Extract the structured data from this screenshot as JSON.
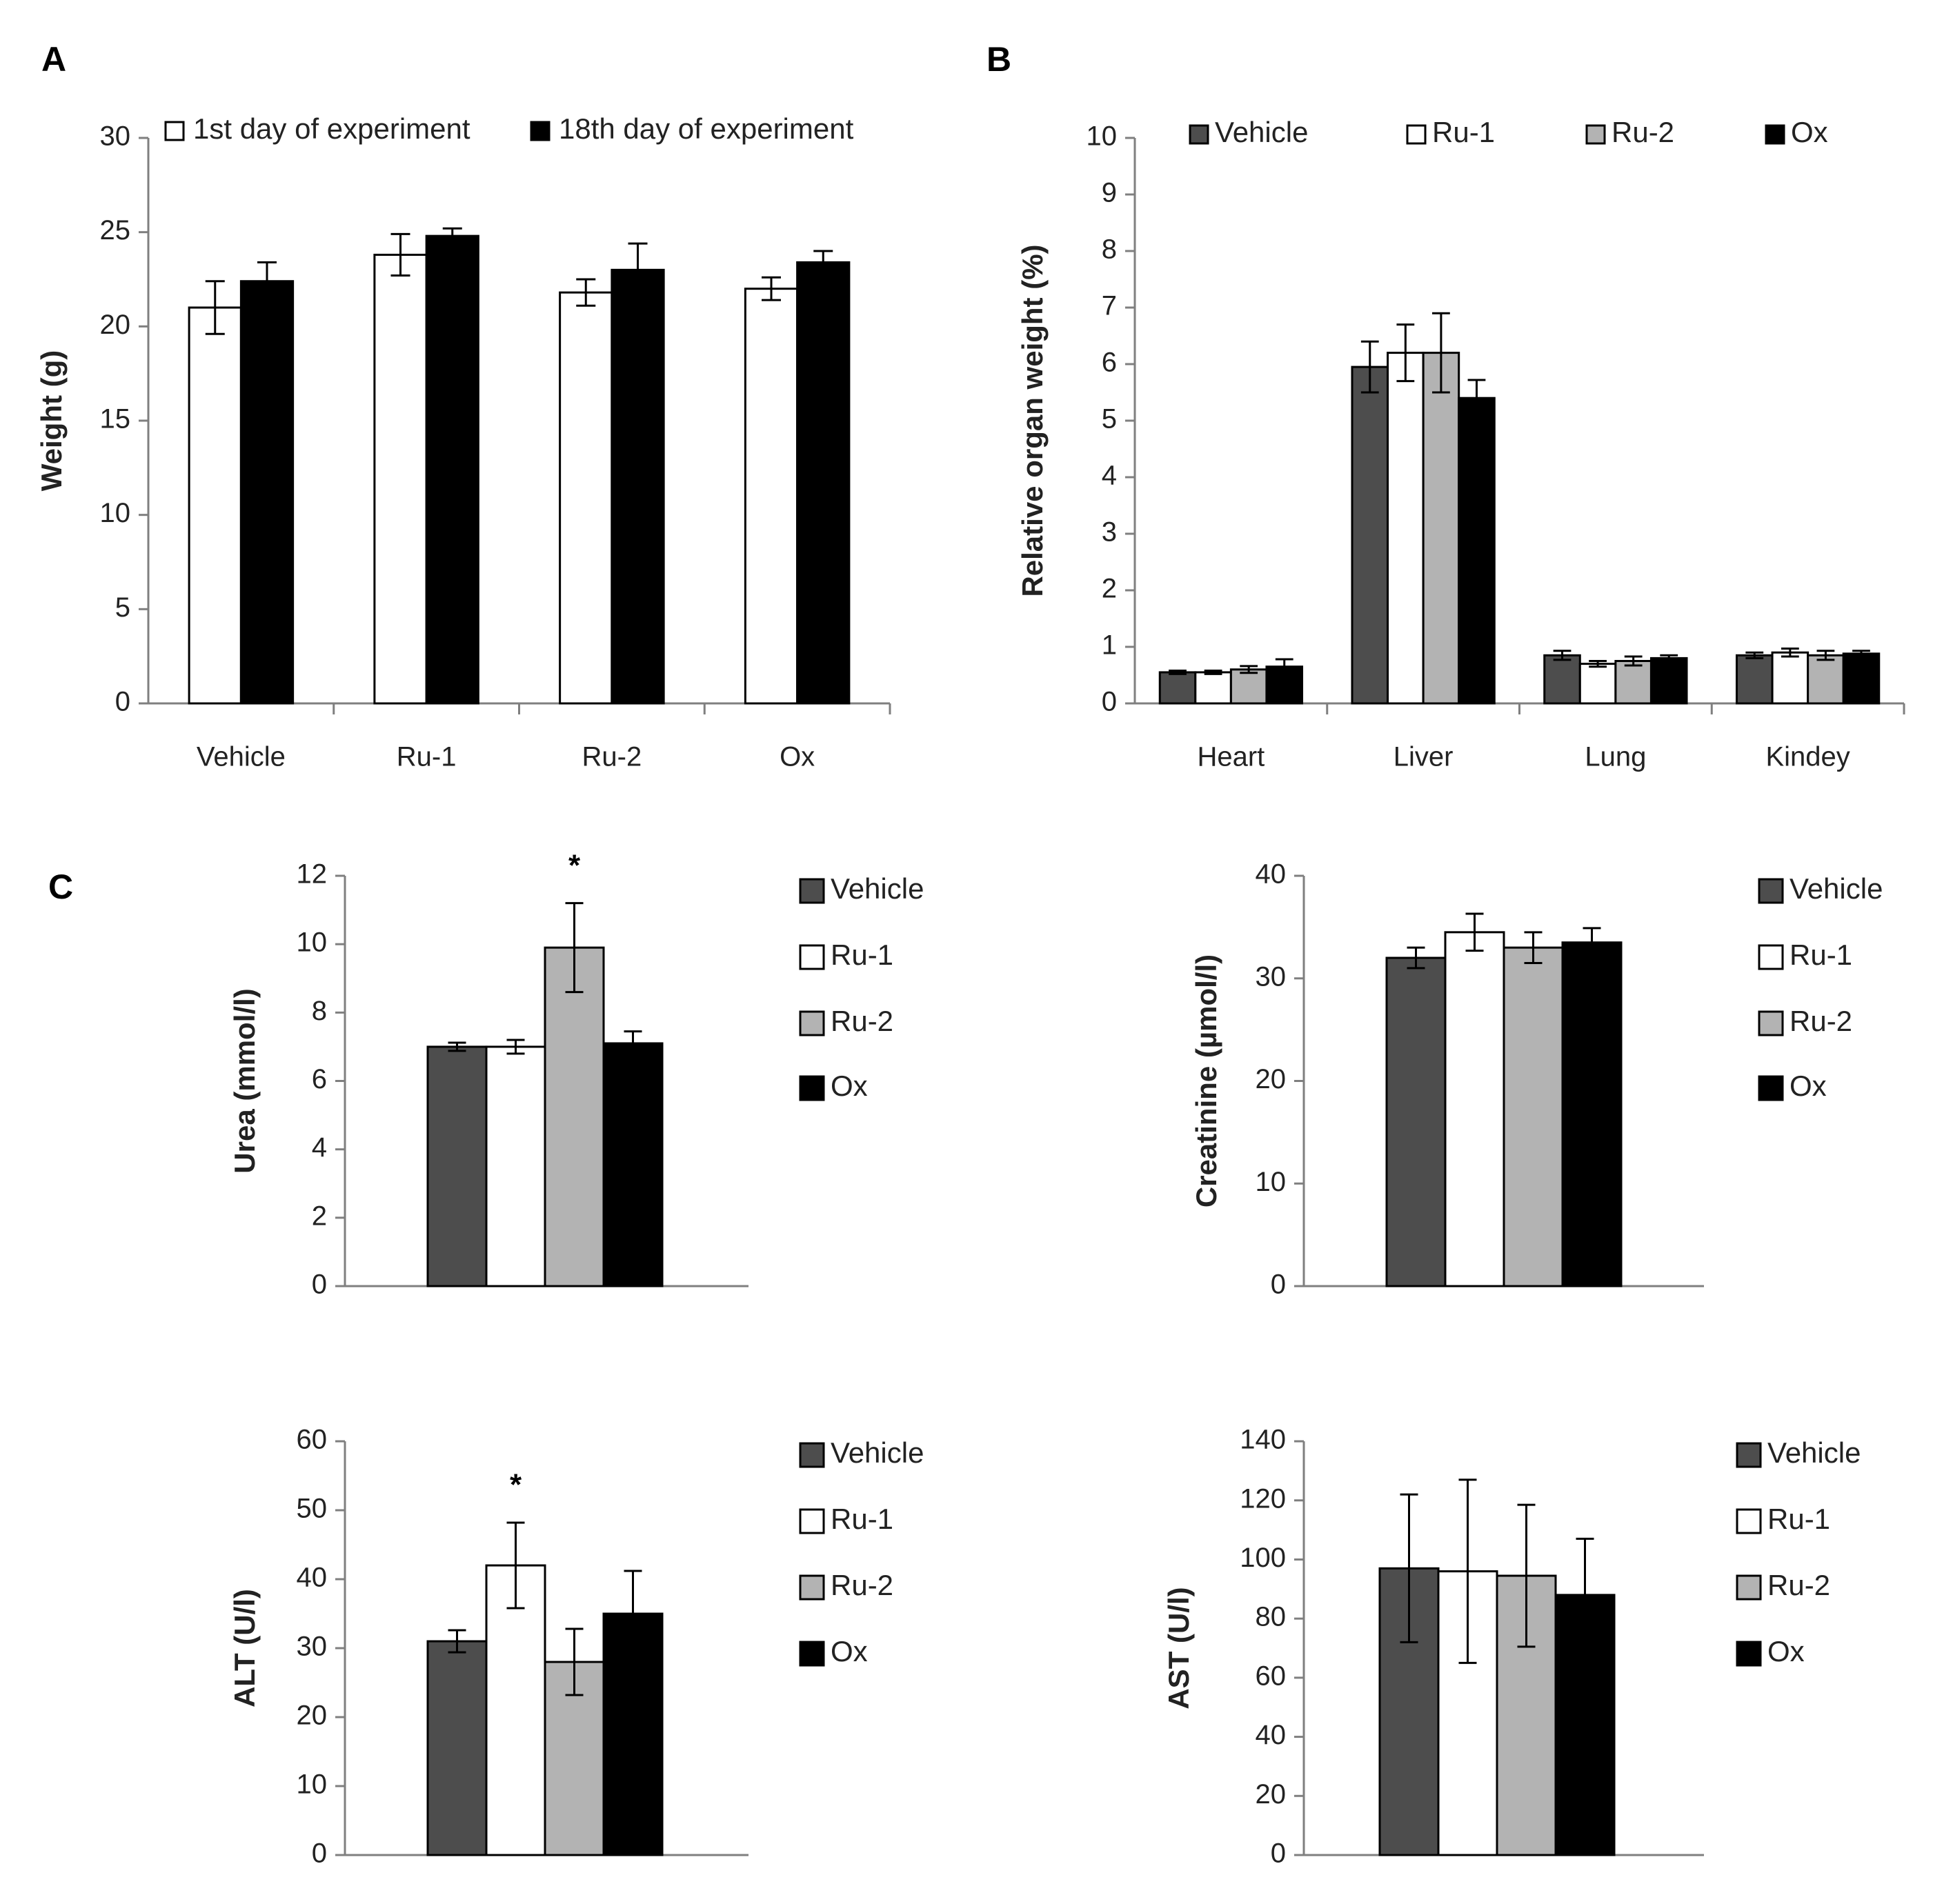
{
  "colors": {
    "vehicle": "#4d4d4d",
    "ru1": "#ffffff",
    "ru2": "#b3b3b3",
    "ox": "#000000",
    "first_day": "#ffffff",
    "eighteenth_day": "#000000",
    "axis": "#7f7f7f",
    "bar_stroke": "#000000"
  },
  "chart_data": [
    {
      "id": "A",
      "panel_label": "A",
      "type": "bar",
      "title": "",
      "xlabel": "",
      "ylabel": "Weight (g)",
      "ylim": [
        0,
        30
      ],
      "yticks": [
        0,
        5,
        10,
        15,
        20,
        25,
        30
      ],
      "categories": [
        "Vehicle",
        "Ru-1",
        "Ru-2",
        "Ox"
      ],
      "series": [
        {
          "name": "1st day of experiment",
          "color_key": "first_day",
          "values": [
            21.0,
            23.8,
            21.8,
            22.0
          ],
          "errors": [
            1.4,
            1.1,
            0.7,
            0.6
          ]
        },
        {
          "name": "18th day of experiment",
          "color_key": "eighteenth_day",
          "values": [
            22.4,
            24.8,
            23.0,
            23.4
          ],
          "errors": [
            1.0,
            0.4,
            1.4,
            0.6
          ]
        }
      ],
      "legend": "top"
    },
    {
      "id": "B",
      "panel_label": "B",
      "type": "bar",
      "title": "",
      "xlabel": "",
      "ylabel": "Relative organ weight (%)",
      "ylim": [
        0,
        10
      ],
      "yticks": [
        0,
        1,
        2,
        3,
        4,
        5,
        6,
        7,
        8,
        9,
        10
      ],
      "categories": [
        "Heart",
        "Liver",
        "Lung",
        "Kindey"
      ],
      "series": [
        {
          "name": "Vehicle",
          "color_key": "vehicle",
          "values": [
            0.55,
            5.95,
            0.85,
            0.85
          ],
          "errors": [
            0.03,
            0.45,
            0.08,
            0.05
          ]
        },
        {
          "name": "Ru-1",
          "color_key": "ru1",
          "values": [
            0.55,
            6.2,
            0.7,
            0.9
          ],
          "errors": [
            0.03,
            0.5,
            0.05,
            0.07
          ]
        },
        {
          "name": "Ru-2",
          "color_key": "ru2",
          "values": [
            0.6,
            6.2,
            0.75,
            0.85
          ],
          "errors": [
            0.06,
            0.7,
            0.08,
            0.08
          ]
        },
        {
          "name": "Ox",
          "color_key": "ox",
          "values": [
            0.65,
            5.4,
            0.8,
            0.88
          ],
          "errors": [
            0.13,
            0.32,
            0.05,
            0.05
          ]
        }
      ],
      "legend": "top"
    },
    {
      "id": "C1",
      "panel_label": "C",
      "type": "bar",
      "title": "",
      "xlabel": "",
      "ylabel": "Urea (mmol/l)",
      "ylim": [
        0,
        12
      ],
      "yticks": [
        0,
        2,
        4,
        6,
        8,
        10,
        12
      ],
      "categories": [
        ""
      ],
      "series": [
        {
          "name": "Vehicle",
          "color_key": "vehicle",
          "values": [
            7.0
          ],
          "errors": [
            0.12
          ],
          "mark": ""
        },
        {
          "name": "Ru-1",
          "color_key": "ru1",
          "values": [
            7.0
          ],
          "errors": [
            0.2
          ],
          "mark": ""
        },
        {
          "name": "Ru-2",
          "color_key": "ru2",
          "values": [
            9.9
          ],
          "errors": [
            1.3
          ],
          "mark": "*"
        },
        {
          "name": "Ox",
          "color_key": "ox",
          "values": [
            7.1
          ],
          "errors": [
            0.35
          ],
          "mark": ""
        }
      ],
      "legend": "right"
    },
    {
      "id": "C2",
      "panel_label": "",
      "type": "bar",
      "title": "",
      "xlabel": "",
      "ylabel": "Creatinine (µmol/l)",
      "ylim": [
        0,
        40
      ],
      "yticks": [
        0,
        10,
        20,
        30,
        40
      ],
      "categories": [
        ""
      ],
      "series": [
        {
          "name": "Vehicle",
          "color_key": "vehicle",
          "values": [
            32.0
          ],
          "errors": [
            1.0
          ],
          "mark": ""
        },
        {
          "name": "Ru-1",
          "color_key": "ru1",
          "values": [
            34.5
          ],
          "errors": [
            1.8
          ],
          "mark": ""
        },
        {
          "name": "Ru-2",
          "color_key": "ru2",
          "values": [
            33.0
          ],
          "errors": [
            1.5
          ],
          "mark": ""
        },
        {
          "name": "Ox",
          "color_key": "ox",
          "values": [
            33.5
          ],
          "errors": [
            1.4
          ],
          "mark": ""
        }
      ],
      "legend": "right"
    },
    {
      "id": "C3",
      "panel_label": "",
      "type": "bar",
      "title": "",
      "xlabel": "",
      "ylabel": "ALT (U/l)",
      "ylim": [
        0,
        60
      ],
      "yticks": [
        0,
        10,
        20,
        30,
        40,
        50,
        60
      ],
      "categories": [
        ""
      ],
      "series": [
        {
          "name": "Vehicle",
          "color_key": "vehicle",
          "values": [
            31.0
          ],
          "errors": [
            1.6
          ],
          "mark": ""
        },
        {
          "name": "Ru-1",
          "color_key": "ru1",
          "values": [
            42.0
          ],
          "errors": [
            6.2
          ],
          "mark": "*"
        },
        {
          "name": "Ru-2",
          "color_key": "ru2",
          "values": [
            28.0
          ],
          "errors": [
            4.8
          ],
          "mark": ""
        },
        {
          "name": "Ox",
          "color_key": "ox",
          "values": [
            35.0
          ],
          "errors": [
            6.2
          ],
          "mark": ""
        }
      ],
      "legend": "right"
    },
    {
      "id": "C4",
      "panel_label": "",
      "type": "bar",
      "title": "",
      "xlabel": "",
      "ylabel": "AST (U/l)",
      "ylim": [
        0,
        140
      ],
      "yticks": [
        0,
        20,
        40,
        60,
        80,
        100,
        120,
        140
      ],
      "categories": [
        ""
      ],
      "series": [
        {
          "name": "Vehicle",
          "color_key": "vehicle",
          "values": [
            97.0
          ],
          "errors": [
            25.0
          ],
          "mark": ""
        },
        {
          "name": "Ru-1",
          "color_key": "ru1",
          "values": [
            96.0
          ],
          "errors": [
            31.0
          ],
          "mark": ""
        },
        {
          "name": "Ru-2",
          "color_key": "ru2",
          "values": [
            94.5
          ],
          "errors": [
            24.0
          ],
          "mark": ""
        },
        {
          "name": "Ox",
          "color_key": "ox",
          "values": [
            88.0
          ],
          "errors": [
            19.0
          ],
          "mark": ""
        }
      ],
      "legend": "right"
    }
  ]
}
